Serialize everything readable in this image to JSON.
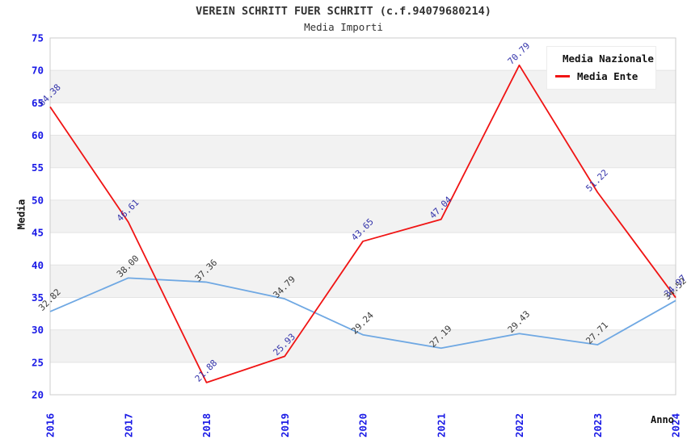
{
  "chart": {
    "title": "VEREIN SCHRITT FUER SCHRITT (c.f.94079680214)",
    "subtitle": "Media Importi",
    "ylabel": "Media",
    "xlabel": "Anno"
  },
  "chart_data": {
    "type": "line",
    "title": "VEREIN SCHRITT FUER SCHRITT (c.f.94079680214)",
    "subtitle": "Media Importi",
    "xlabel": "Anno",
    "ylabel": "Media",
    "x": [
      2016,
      2017,
      2018,
      2019,
      2020,
      2021,
      2022,
      2023,
      2024
    ],
    "series": [
      {
        "name": "Media Nazionale",
        "color": "#6FA8E3",
        "label_color": "#3a3a3a",
        "values": [
          32.82,
          38.0,
          37.36,
          34.79,
          29.24,
          27.19,
          29.43,
          27.71,
          34.52
        ]
      },
      {
        "name": "Media Ente",
        "color": "#F01414",
        "label_color": "#3333aa",
        "values": [
          64.38,
          46.61,
          21.88,
          25.93,
          43.65,
          47.04,
          70.79,
          51.22,
          34.97
        ]
      }
    ],
    "ylim": [
      20,
      75
    ],
    "y_tick_step": 5,
    "grid": "alternating-horizontal-bands",
    "band_color": "#f2f2f2",
    "gridline_color": "#e4e4e4",
    "frame_color": "#cccccc",
    "tick_label_color": "#1a1ae6",
    "legend_position": "top-right",
    "legend_entries": [
      "Media Nazionale",
      "Media Ente"
    ]
  }
}
